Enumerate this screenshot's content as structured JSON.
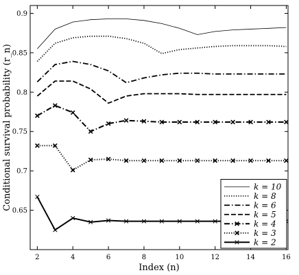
{
  "chart_data": {
    "type": "line",
    "xlabel": "Index (n)",
    "ylabel": "Conditional survival probability (r_n)",
    "xlim": [
      1.6,
      16.1
    ],
    "ylim": [
      0.6,
      0.91
    ],
    "x_ticks": [
      "2",
      "4",
      "6",
      "8",
      "10",
      "12",
      "14",
      "16"
    ],
    "y_ticks": [
      "0.65",
      "0.7",
      "0.75",
      "0.8",
      "0.85",
      "0.9"
    ],
    "legend_position": "bottom-right",
    "x": [
      2,
      3,
      4,
      5,
      6,
      7,
      8,
      9,
      10,
      11,
      12,
      13,
      14,
      15,
      16
    ],
    "series": [
      {
        "name": "k = 10",
        "style": "solid",
        "marker": "none",
        "values": [
          0.855,
          0.88,
          0.889,
          0.892,
          0.893,
          0.893,
          0.891,
          0.887,
          0.881,
          0.873,
          0.877,
          0.879,
          0.88,
          0.881,
          0.882
        ]
      },
      {
        "name": "k = 8",
        "style": "dotted",
        "marker": "none",
        "values": [
          0.839,
          0.862,
          0.869,
          0.871,
          0.871,
          0.868,
          0.862,
          0.849,
          0.854,
          0.856,
          0.858,
          0.859,
          0.859,
          0.859,
          0.858
        ]
      },
      {
        "name": "k = 6",
        "style": "dashdot",
        "marker": "none",
        "values": [
          0.813,
          0.835,
          0.839,
          0.835,
          0.827,
          0.812,
          0.818,
          0.822,
          0.824,
          0.824,
          0.823,
          0.823,
          0.823,
          0.823,
          0.823
        ]
      },
      {
        "name": "k = 5",
        "style": "dashed",
        "marker": "none",
        "values": [
          0.795,
          0.814,
          0.814,
          0.804,
          0.786,
          0.795,
          0.798,
          0.798,
          0.798,
          0.797,
          0.797,
          0.797,
          0.797,
          0.797,
          0.797
        ]
      },
      {
        "name": "k = 4",
        "style": "dashdot",
        "marker": "x",
        "values": [
          0.77,
          0.783,
          0.774,
          0.75,
          0.76,
          0.764,
          0.763,
          0.762,
          0.762,
          0.762,
          0.762,
          0.762,
          0.762,
          0.762,
          0.762
        ]
      },
      {
        "name": "k = 3",
        "style": "dotted",
        "marker": "x",
        "values": [
          0.732,
          0.732,
          0.701,
          0.714,
          0.715,
          0.713,
          0.713,
          0.713,
          0.713,
          0.713,
          0.713,
          0.713,
          0.713,
          0.713,
          0.713
        ]
      },
      {
        "name": "k = 2",
        "style": "solid",
        "marker": "x",
        "values": [
          0.667,
          0.625,
          0.64,
          0.635,
          0.637,
          0.636,
          0.636,
          0.636,
          0.636,
          0.636,
          0.636,
          0.636,
          0.636,
          0.636,
          0.636
        ]
      }
    ]
  }
}
